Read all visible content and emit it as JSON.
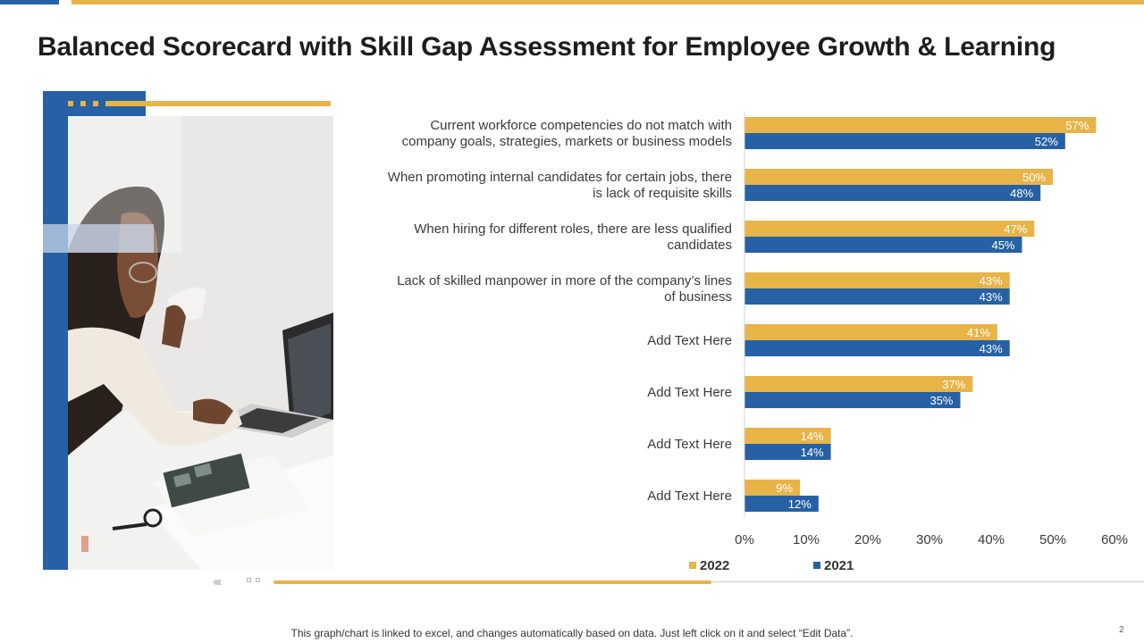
{
  "title": "Balanced Scorecard with Skill Gap Assessment for Employee Growth & Learning",
  "footer_note": "This graph/chart is linked to excel, and changes automatically based on data. Just left click on it and select “Edit Data”.",
  "page_number": "2",
  "colors": {
    "gold": "#e8b347",
    "blue": "#2561a4"
  },
  "decor": {
    "chevrons": "‹‹‹‹"
  },
  "chart_data": {
    "type": "bar",
    "orientation": "horizontal",
    "categories": [
      [
        "Current workforce competencies do not match with",
        "company goals, strategies, markets or business models"
      ],
      [
        "When promoting internal candidates for certain jobs, there",
        "is lack of requisite skills"
      ],
      [
        "When hiring for different roles, there are less qualified",
        "candidates"
      ],
      [
        "Lack of skilled manpower in more of the company’s lines",
        "of business"
      ],
      [
        "Add Text Here"
      ],
      [
        "Add Text Here"
      ],
      [
        "Add Text Here"
      ],
      [
        "Add Text Here"
      ]
    ],
    "series": [
      {
        "name": "2022",
        "color": "#e8b347",
        "values": [
          57,
          50,
          47,
          43,
          41,
          37,
          14,
          9
        ]
      },
      {
        "name": "2021",
        "color": "#2561a4",
        "values": [
          52,
          48,
          45,
          43,
          43,
          35,
          14,
          12
        ]
      }
    ],
    "xlim": [
      0,
      60
    ],
    "xticks": [
      "0%",
      "10%",
      "20%",
      "30%",
      "40%",
      "50%",
      "60%"
    ],
    "value_suffix": "%",
    "legend_position": "bottom",
    "grid": false
  }
}
